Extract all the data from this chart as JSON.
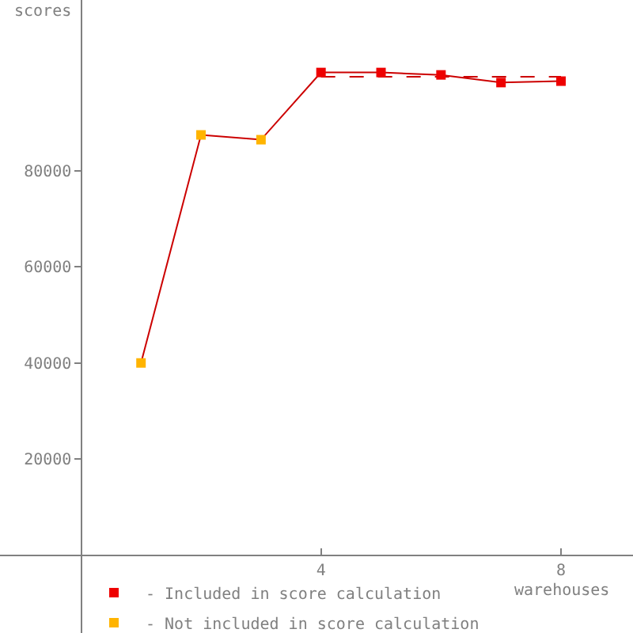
{
  "chart_data": {
    "type": "line",
    "xlabel": "warehouses",
    "ylabel": "scores",
    "xlim": [
      -1.35,
      9.2
    ],
    "xticks": [
      4,
      8
    ],
    "ylim": [
      -16250,
      115600
    ],
    "yticks": [
      20000,
      40000,
      60000,
      80000
    ],
    "legend": "bottom left",
    "series": [
      {
        "color": "#cc0000",
        "marker": "none",
        "x": [
          1,
          2,
          3,
          4,
          5,
          6,
          7,
          8
        ],
        "values": [
          40000,
          87500,
          86500,
          100500,
          100500,
          100000,
          98400,
          98700
        ]
      },
      {
        "type": "line",
        "color": "#cc0000",
        "marker": "none",
        "line_style": "dashed",
        "x": [
          4,
          8
        ],
        "values": [
          99600,
          99600
        ]
      },
      {
        "type": "scatter",
        "name": "- Included in score calculation",
        "color": "#ee0000",
        "marker": "square",
        "x": [
          4,
          5,
          6,
          7,
          8
        ],
        "values": [
          100500,
          100500,
          100000,
          98400,
          98700
        ]
      },
      {
        "type": "scatter",
        "name": "- Not included in score calculation",
        "color": "#ffb400",
        "marker": "square",
        "x": [
          1,
          2,
          3
        ],
        "values": [
          40000,
          87500,
          86500
        ]
      }
    ]
  }
}
